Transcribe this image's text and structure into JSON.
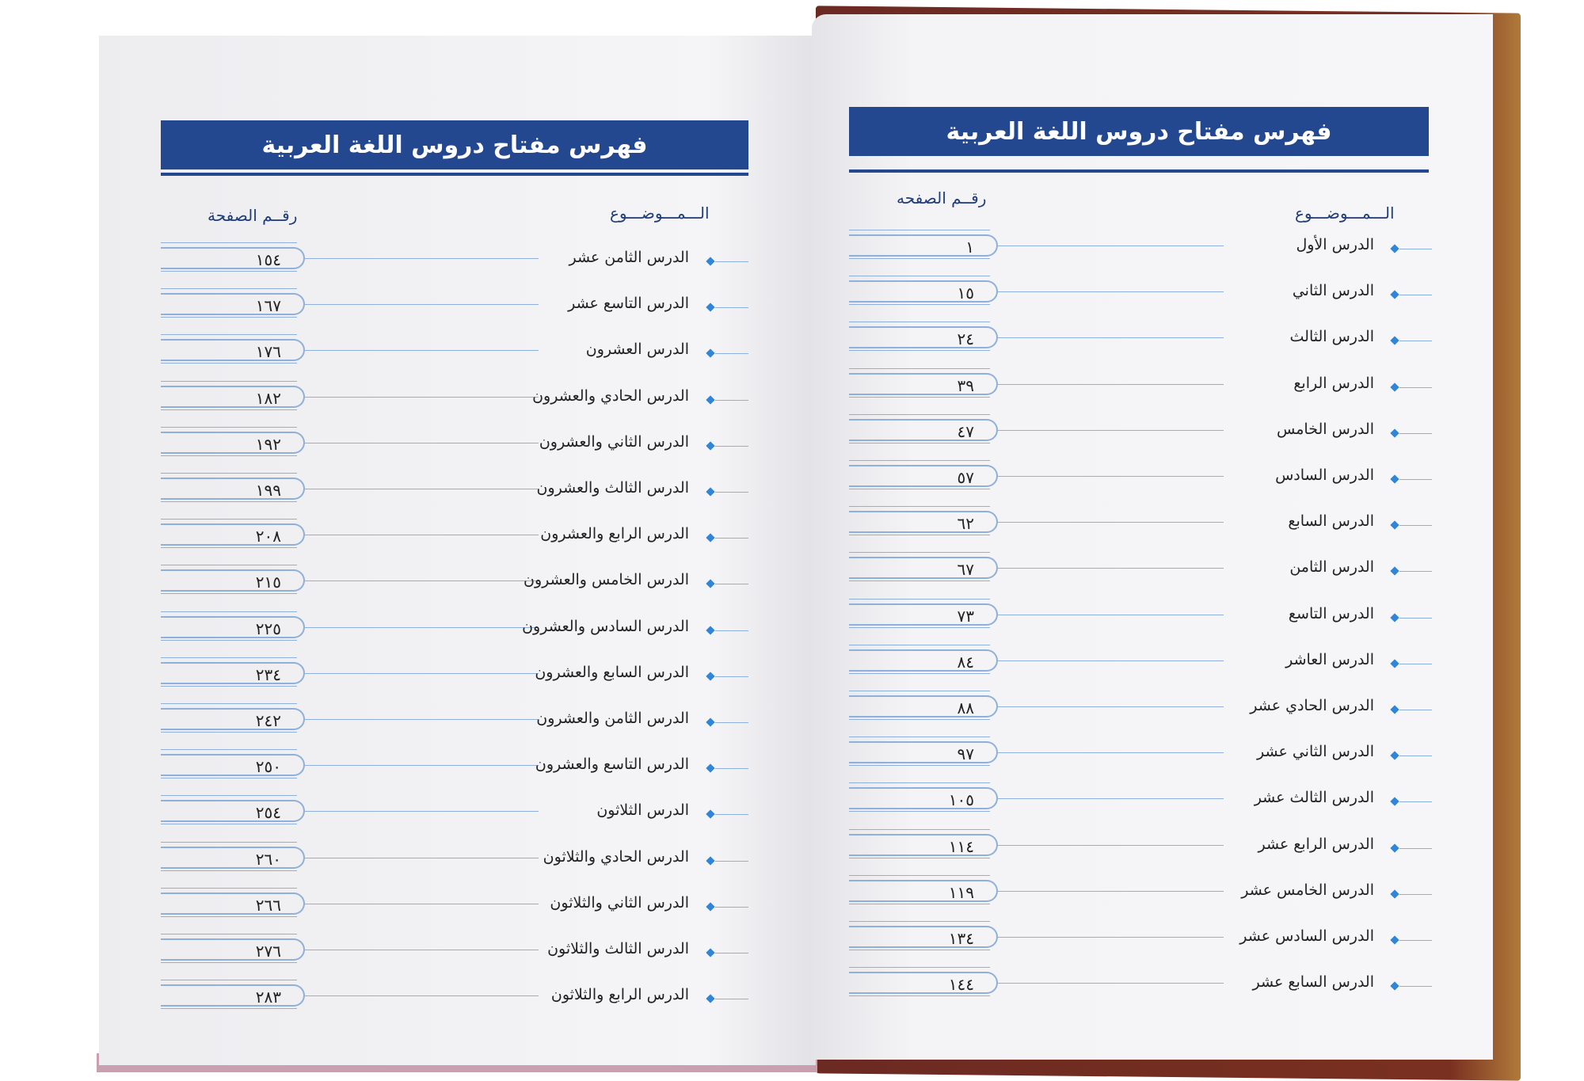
{
  "left_page": {
    "title": "فهرس مفتاح دروس اللغة العربية",
    "topic_header": "الـــمـــوضـــوع",
    "page_header": "رقــم الصفحة",
    "entries": [
      {
        "lesson": "الدرس الثامن عشر",
        "page": "١٥٤"
      },
      {
        "lesson": "الدرس التاسع عشر",
        "page": "١٦٧"
      },
      {
        "lesson": "الدرس العشرون",
        "page": "١٧٦"
      },
      {
        "lesson": "الدرس الحادي والعشرون",
        "page": "١٨٢"
      },
      {
        "lesson": "الدرس الثاني والعشرون",
        "page": "١٩٢"
      },
      {
        "lesson": "الدرس الثالث والعشرون",
        "page": "١٩٩"
      },
      {
        "lesson": "الدرس الرابع والعشرون",
        "page": "٢٠٨"
      },
      {
        "lesson": "الدرس الخامس والعشرون",
        "page": "٢١٥"
      },
      {
        "lesson": "الدرس السادس والعشرون",
        "page": "٢٢٥"
      },
      {
        "lesson": "الدرس السابع والعشرون",
        "page": "٢٣٤"
      },
      {
        "lesson": "الدرس الثامن والعشرون",
        "page": "٢٤٢"
      },
      {
        "lesson": "الدرس التاسع والعشرون",
        "page": "٢٥٠"
      },
      {
        "lesson": "الدرس الثلاثون",
        "page": "٢٥٤"
      },
      {
        "lesson": "الدرس الحادي والثلاثون",
        "page": "٢٦٠"
      },
      {
        "lesson": "الدرس الثاني والثلاثون",
        "page": "٢٦٦"
      },
      {
        "lesson": "الدرس الثالث والثلاثون",
        "page": "٢٧٦"
      },
      {
        "lesson": "الدرس الرابع والثلاثون",
        "page": "٢٨٣"
      }
    ]
  },
  "right_page": {
    "title": "فهرس مفتاح دروس اللغة العربية",
    "topic_header": "الـــمـــوضـــوع",
    "page_header": "رقــم الصفحه",
    "entries": [
      {
        "lesson": "الدرس الأول",
        "page": "١"
      },
      {
        "lesson": "الدرس الثاني",
        "page": "١٥"
      },
      {
        "lesson": "الدرس الثالث",
        "page": "٢٤"
      },
      {
        "lesson": "الدرس الرابع",
        "page": "٣٩"
      },
      {
        "lesson": "الدرس الخامس",
        "page": "٤٧"
      },
      {
        "lesson": "الدرس السادس",
        "page": "٥٧"
      },
      {
        "lesson": "الدرس السابع",
        "page": "٦٢"
      },
      {
        "lesson": "الدرس الثامن",
        "page": "٦٧"
      },
      {
        "lesson": "الدرس التاسع",
        "page": "٧٣"
      },
      {
        "lesson": "الدرس العاشر",
        "page": "٨٤"
      },
      {
        "lesson": "الدرس الحادي عشر",
        "page": "٨٨"
      },
      {
        "lesson": "الدرس الثاني عشر",
        "page": "٩٧"
      },
      {
        "lesson": "الدرس الثالث عشر",
        "page": "١٠٥"
      },
      {
        "lesson": "الدرس الرابع عشر",
        "page": "١١٤"
      },
      {
        "lesson": "الدرس الخامس عشر",
        "page": "١١٩"
      },
      {
        "lesson": "الدرس السادس عشر",
        "page": "١٣٤"
      },
      {
        "lesson": "الدرس السابع عشر",
        "page": "١٤٤"
      }
    ]
  },
  "colors": {
    "title_bar": "#24488f",
    "line": "#8fb0d8",
    "diamond": "#2f86d8",
    "cover": "#6b2a22"
  }
}
